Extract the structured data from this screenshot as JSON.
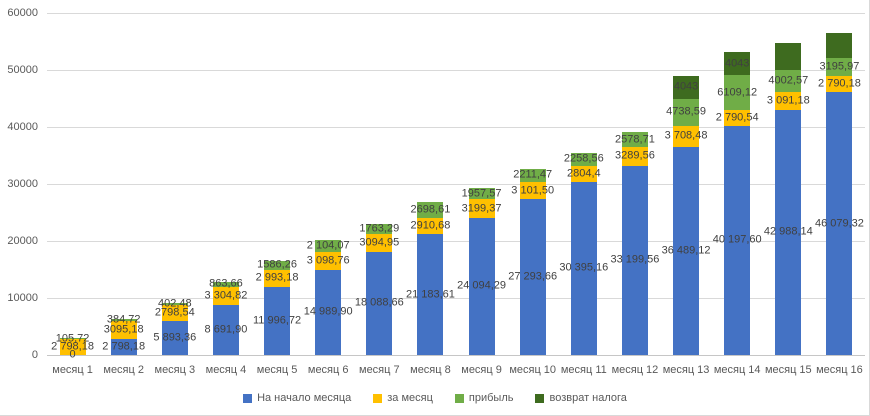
{
  "chart_data": {
    "type": "bar",
    "stacked": true,
    "title": "",
    "xlabel": "",
    "ylabel": "",
    "ylim": [
      0,
      60000
    ],
    "yticks": [
      0,
      10000,
      20000,
      30000,
      40000,
      50000,
      60000
    ],
    "grid": true,
    "legend_position": "bottom",
    "label_color": "#404040",
    "axis_color": "#595959",
    "gridline_color": "#d9d9d9",
    "categories": [
      "месяц 1",
      "месяц 2",
      "месяц 3",
      "месяц 4",
      "месяц 5",
      "месяц 6",
      "месяц 7",
      "месяц 8",
      "месяц 9",
      "месяц 10",
      "месяц 11",
      "месяц 12",
      "месяц 13",
      "месяц 14",
      "месяц 15",
      "месяц 16"
    ],
    "series": [
      {
        "name": "На начало месяца",
        "color": "#4472c4",
        "values": [
          0,
          2798.18,
          5893.36,
          8691.9,
          11996.72,
          14989.9,
          18088.66,
          21183.61,
          24094.29,
          27293.66,
          30395.16,
          33199.56,
          36489.12,
          40197.6,
          42988.14,
          46079.32
        ],
        "labels": [
          "0",
          "2 798,18",
          "5 893,36",
          "8 691,90",
          "11 996,72",
          "14 989,90",
          "18 088,66",
          "21 183,61",
          "24 094,29",
          "27 293,66",
          "30 395,16",
          "33 199,56",
          "36 489,12",
          "40 197,60",
          "42 988,14",
          "46 079,32"
        ]
      },
      {
        "name": "за месяц",
        "color": "#ffc000",
        "values": [
          2798.18,
          3095.18,
          2798.54,
          3304.82,
          2993.18,
          3098.76,
          3094.95,
          2910.68,
          3199.37,
          3101.5,
          2804.4,
          3289.56,
          3708.48,
          2790.54,
          3091.18,
          2790.18
        ],
        "labels": [
          "2 798,18",
          "3095,18",
          "2798,54",
          "3 304,82",
          "2 993,18",
          "3 098,76",
          "3094,95",
          "2910,68",
          "3199,37",
          "3 101,50",
          "2804,4",
          "3289,56",
          "3 708,48",
          "2 790,54",
          "3 091,18",
          "2 790,18"
        ]
      },
      {
        "name": "прибыль",
        "color": "#70ad47",
        "values": [
          105.72,
          384.72,
          402.48,
          863.66,
          1586.26,
          2104.07,
          1763.29,
          2698.61,
          1957.57,
          2211.47,
          2258.56,
          2578.71,
          4738.59,
          6109.12,
          4002.57,
          3195.97
        ],
        "labels": [
          "105,72",
          "384,72",
          "402,48",
          "863,66",
          "1586,26",
          "2 104,07",
          "1763,29",
          "2698,61",
          "1957,57",
          "2211,47",
          "2258,56",
          "2578,71",
          "4738,59",
          "6109,12",
          "4002,57",
          "3195,97"
        ]
      },
      {
        "name": "возврат налога",
        "color": "#3e6b1f",
        "values": [
          0,
          0,
          0,
          0,
          0,
          0,
          0,
          0,
          0,
          0,
          0,
          0,
          4043,
          4043,
          4650,
          4430
        ],
        "labels": [
          "",
          "",
          "",
          "",
          "",
          "",
          "",
          "",
          "",
          "",
          "",
          "",
          "4043",
          "4043",
          "",
          ""
        ]
      }
    ]
  }
}
